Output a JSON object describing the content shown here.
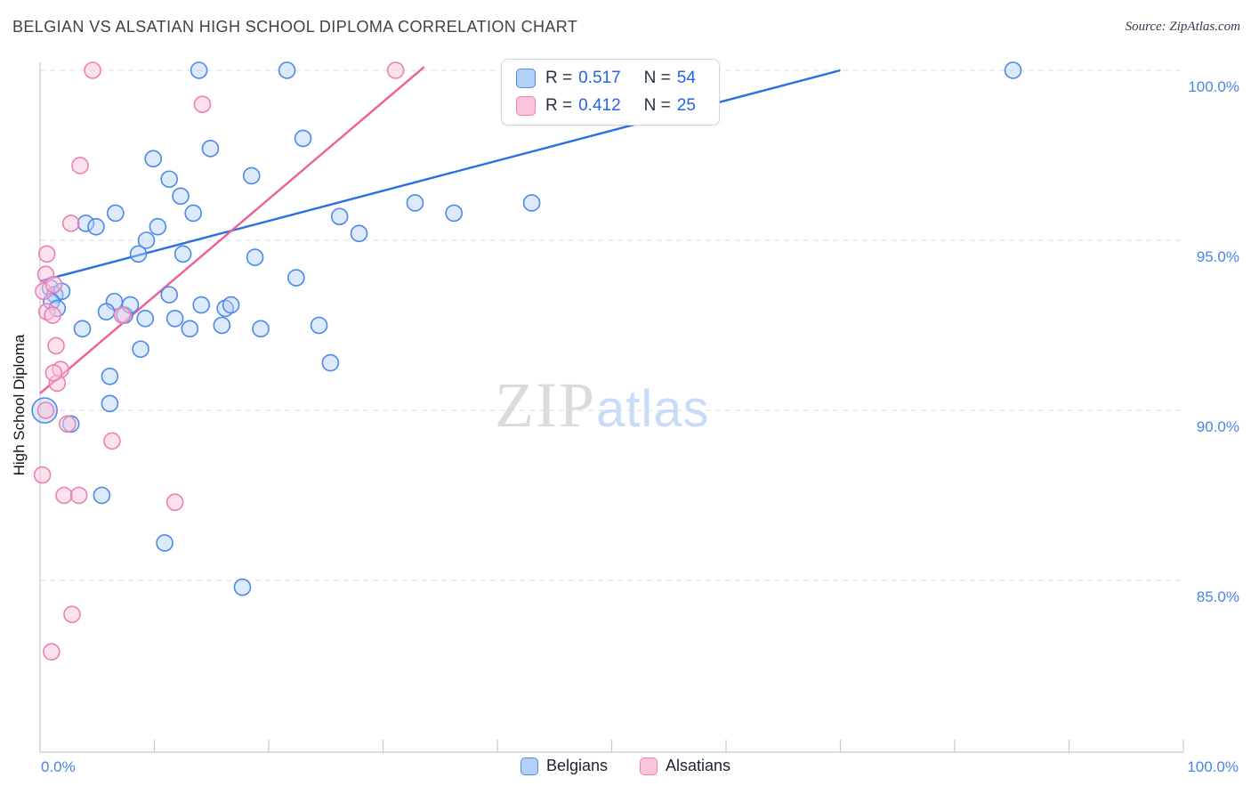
{
  "header": {
    "title": "BELGIAN VS ALSATIAN HIGH SCHOOL DIPLOMA CORRELATION CHART",
    "source": "Source: ZipAtlas.com"
  },
  "watermark": {
    "zip": "ZIP",
    "atlas": "atlas"
  },
  "axes": {
    "y_label": "High School Diploma",
    "x_min_label": "0.0%",
    "x_max_label": "100.0%"
  },
  "correlation_legend": {
    "rows": [
      {
        "series": "Belgians",
        "r_label": "R =",
        "r_value": "0.517",
        "n_label": "N =",
        "n_value": "54"
      },
      {
        "series": "Alsatians",
        "r_label": "R =",
        "r_value": "0.412",
        "n_label": "N =",
        "n_value": "25"
      }
    ]
  },
  "bottom_legend": {
    "items": [
      {
        "label": "Belgians"
      },
      {
        "label": "Alsatians"
      }
    ]
  },
  "chart_data": {
    "type": "scatter",
    "title": "BELGIAN VS ALSATIAN HIGH SCHOOL DIPLOMA CORRELATION CHART",
    "xlabel": "",
    "ylabel": "High School Diploma",
    "xlim": [
      0,
      100
    ],
    "ylim": [
      80,
      100.3
    ],
    "grid": "dashed-horizontal",
    "legend_position": "top-center",
    "x_ticks": [
      0,
      10,
      20,
      30,
      40,
      50,
      60,
      70,
      80,
      90,
      100
    ],
    "y_ticks": [
      {
        "value": 100,
        "label": "100.0%"
      },
      {
        "value": 95,
        "label": "95.0%"
      },
      {
        "value": 90,
        "label": "90.0%"
      },
      {
        "value": 85,
        "label": "85.0%"
      }
    ],
    "series": [
      {
        "name": "Belgians",
        "R": 0.517,
        "N": 54,
        "stroke": "#4c89e8",
        "fill": "#b3d1f7",
        "fill_opacity": 0.45,
        "r": 9,
        "trend": {
          "x1": 0,
          "y1": 93.8,
          "x2": 70,
          "y2": 100.0,
          "color": "#2a6fe2"
        },
        "points": [
          [
            13.9,
            100
          ],
          [
            21.6,
            100
          ],
          [
            51.9,
            100
          ],
          [
            85.1,
            100
          ],
          [
            23.0,
            98.0
          ],
          [
            14.9,
            97.7
          ],
          [
            9.9,
            97.4
          ],
          [
            18.5,
            96.9
          ],
          [
            11.3,
            96.8
          ],
          [
            12.3,
            96.3
          ],
          [
            13.4,
            95.8
          ],
          [
            32.8,
            96.1
          ],
          [
            36.2,
            95.8
          ],
          [
            43.0,
            96.1
          ],
          [
            26.2,
            95.7
          ],
          [
            27.9,
            95.2
          ],
          [
            10.3,
            95.4
          ],
          [
            9.3,
            95.0
          ],
          [
            4.0,
            95.5
          ],
          [
            4.9,
            95.4
          ],
          [
            6.6,
            95.8
          ],
          [
            8.6,
            94.6
          ],
          [
            12.5,
            94.6
          ],
          [
            18.8,
            94.5
          ],
          [
            22.4,
            93.9
          ],
          [
            6.5,
            93.2
          ],
          [
            0.9,
            93.6
          ],
          [
            1.3,
            93.4
          ],
          [
            1.9,
            93.5
          ],
          [
            1.0,
            93.2
          ],
          [
            1.5,
            93.0
          ],
          [
            3.7,
            92.4
          ],
          [
            5.8,
            92.9
          ],
          [
            7.4,
            92.8
          ],
          [
            7.9,
            93.1
          ],
          [
            11.3,
            93.4
          ],
          [
            9.2,
            92.7
          ],
          [
            11.8,
            92.7
          ],
          [
            14.1,
            93.1
          ],
          [
            16.2,
            93.0
          ],
          [
            16.7,
            93.1
          ],
          [
            13.1,
            92.4
          ],
          [
            15.9,
            92.5
          ],
          [
            19.3,
            92.4
          ],
          [
            24.4,
            92.5
          ],
          [
            25.4,
            91.4
          ],
          [
            8.8,
            91.8
          ],
          [
            6.1,
            91.0
          ],
          [
            6.1,
            90.2
          ],
          [
            0.4,
            90.0,
            14
          ],
          [
            2.7,
            89.6
          ],
          [
            5.4,
            87.5
          ],
          [
            10.9,
            86.1
          ],
          [
            17.7,
            84.8
          ]
        ]
      },
      {
        "name": "Alsatians",
        "R": 0.412,
        "N": 25,
        "stroke": "#f07fb1",
        "fill": "#fac5db",
        "fill_opacity": 0.5,
        "r": 9,
        "trend": {
          "x1": 0,
          "y1": 90.5,
          "x2": 33.6,
          "y2": 100.1,
          "color": "#ee5f97"
        },
        "points": [
          [
            4.6,
            100
          ],
          [
            31.1,
            100
          ],
          [
            14.2,
            99.0
          ],
          [
            3.5,
            97.2
          ],
          [
            2.7,
            95.5
          ],
          [
            0.6,
            94.6
          ],
          [
            0.5,
            94.0
          ],
          [
            0.3,
            93.5
          ],
          [
            1.2,
            93.7
          ],
          [
            0.6,
            92.9
          ],
          [
            1.1,
            92.8
          ],
          [
            7.2,
            92.8
          ],
          [
            1.4,
            91.9
          ],
          [
            1.8,
            91.2
          ],
          [
            1.5,
            90.8
          ],
          [
            1.2,
            91.1
          ],
          [
            0.5,
            90.0
          ],
          [
            2.4,
            89.6
          ],
          [
            6.3,
            89.1
          ],
          [
            0.2,
            88.1
          ],
          [
            2.1,
            87.5
          ],
          [
            3.4,
            87.5
          ],
          [
            11.8,
            87.3
          ],
          [
            2.8,
            84.0
          ],
          [
            1.0,
            82.9
          ]
        ]
      }
    ]
  }
}
